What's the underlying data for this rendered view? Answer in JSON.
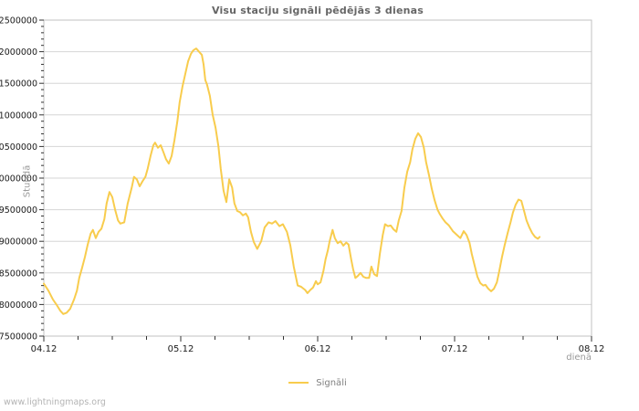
{
  "page": {
    "watermark": "www.lightningmaps.org"
  },
  "colors": {
    "background": "#ffffff",
    "series_line": "#f8cc4d",
    "gridline": "#d6d6d6",
    "frame": "#c2c2c2",
    "tick": "#333333",
    "tick_label": "#1a1a1a",
    "title": "#666666",
    "axis_title": "#999999",
    "legend_text": "#808080",
    "watermark": "#b4b4b4"
  },
  "chart_data": {
    "type": "line",
    "title": "Visu staciju signāli pēdējās 3 dienas",
    "xlabel": "dienā",
    "ylabel": "Stundā",
    "x_tick_labels": [
      "04.12",
      "05.12",
      "06.12",
      "07.12",
      "08.12"
    ],
    "x_range_hours": [
      0,
      96
    ],
    "x_major_tick_hours": 24,
    "x_minor_tick_hours": 6,
    "ylim": [
      7500000,
      12500000
    ],
    "y_tick_step": 500000,
    "y_minor_tick_step": 100000,
    "grid": "horizontal-only",
    "legend": {
      "position": "bottom-center",
      "entries": [
        {
          "label": "Signāli",
          "color": "#f8cc4d"
        }
      ]
    },
    "series": [
      {
        "name": "Signāli",
        "color": "#f8cc4d",
        "points": [
          [
            0,
            8330000
          ],
          [
            0.8,
            8220000
          ],
          [
            1.6,
            8080000
          ],
          [
            2.2,
            8000000
          ],
          [
            2.9,
            7900000
          ],
          [
            3.4,
            7850000
          ],
          [
            4,
            7870000
          ],
          [
            4.6,
            7930000
          ],
          [
            5.3,
            8080000
          ],
          [
            5.8,
            8220000
          ],
          [
            6.2,
            8420000
          ],
          [
            6.7,
            8580000
          ],
          [
            7.2,
            8750000
          ],
          [
            7.7,
            8950000
          ],
          [
            8.2,
            9120000
          ],
          [
            8.6,
            9180000
          ],
          [
            9.1,
            9050000
          ],
          [
            9.6,
            9150000
          ],
          [
            10.1,
            9200000
          ],
          [
            10.6,
            9350000
          ],
          [
            11,
            9600000
          ],
          [
            11.5,
            9780000
          ],
          [
            12,
            9700000
          ],
          [
            12.5,
            9500000
          ],
          [
            13,
            9330000
          ],
          [
            13.4,
            9280000
          ],
          [
            14.1,
            9300000
          ],
          [
            14.7,
            9600000
          ],
          [
            15.4,
            9850000
          ],
          [
            15.8,
            10020000
          ],
          [
            16.3,
            9980000
          ],
          [
            16.8,
            9870000
          ],
          [
            17.3,
            9950000
          ],
          [
            17.8,
            10020000
          ],
          [
            18.2,
            10150000
          ],
          [
            18.7,
            10350000
          ],
          [
            19.2,
            10520000
          ],
          [
            19.5,
            10560000
          ],
          [
            20,
            10480000
          ],
          [
            20.5,
            10520000
          ],
          [
            21,
            10400000
          ],
          [
            21.4,
            10300000
          ],
          [
            21.9,
            10230000
          ],
          [
            22.4,
            10350000
          ],
          [
            22.9,
            10600000
          ],
          [
            23.4,
            10900000
          ],
          [
            23.8,
            11200000
          ],
          [
            24.3,
            11450000
          ],
          [
            24.8,
            11650000
          ],
          [
            25.3,
            11850000
          ],
          [
            25.8,
            11970000
          ],
          [
            26.2,
            12020000
          ],
          [
            26.7,
            12050000
          ],
          [
            27.2,
            12000000
          ],
          [
            27.7,
            11950000
          ],
          [
            28,
            11800000
          ],
          [
            28.3,
            11550000
          ],
          [
            28.6,
            11480000
          ],
          [
            29.1,
            11300000
          ],
          [
            29.6,
            11000000
          ],
          [
            30.1,
            10800000
          ],
          [
            30.6,
            10500000
          ],
          [
            31,
            10150000
          ],
          [
            31.5,
            9800000
          ],
          [
            32,
            9620000
          ],
          [
            32.5,
            9980000
          ],
          [
            33,
            9850000
          ],
          [
            33.4,
            9600000
          ],
          [
            33.9,
            9480000
          ],
          [
            34.4,
            9460000
          ],
          [
            34.9,
            9410000
          ],
          [
            35.4,
            9440000
          ],
          [
            35.8,
            9380000
          ],
          [
            36.3,
            9150000
          ],
          [
            36.8,
            8990000
          ],
          [
            37.4,
            8880000
          ],
          [
            38.1,
            9000000
          ],
          [
            38.7,
            9220000
          ],
          [
            39.4,
            9300000
          ],
          [
            40,
            9280000
          ],
          [
            40.6,
            9320000
          ],
          [
            41.3,
            9240000
          ],
          [
            41.9,
            9270000
          ],
          [
            42.6,
            9150000
          ],
          [
            43.2,
            8940000
          ],
          [
            43.8,
            8600000
          ],
          [
            44.5,
            8300000
          ],
          [
            45.1,
            8280000
          ],
          [
            45.8,
            8230000
          ],
          [
            46.2,
            8180000
          ],
          [
            46.7,
            8230000
          ],
          [
            47.2,
            8270000
          ],
          [
            47.7,
            8370000
          ],
          [
            48,
            8320000
          ],
          [
            48.5,
            8350000
          ],
          [
            49,
            8530000
          ],
          [
            49.4,
            8720000
          ],
          [
            49.8,
            8860000
          ],
          [
            50.1,
            9000000
          ],
          [
            50.6,
            9180000
          ],
          [
            51,
            9050000
          ],
          [
            51.5,
            8970000
          ],
          [
            52,
            9000000
          ],
          [
            52.5,
            8930000
          ],
          [
            53,
            8980000
          ],
          [
            53.4,
            8950000
          ],
          [
            53.9,
            8700000
          ],
          [
            54.2,
            8560000
          ],
          [
            54.6,
            8420000
          ],
          [
            55,
            8450000
          ],
          [
            55.5,
            8500000
          ],
          [
            56,
            8440000
          ],
          [
            56.5,
            8420000
          ],
          [
            57,
            8420000
          ],
          [
            57.4,
            8600000
          ],
          [
            57.9,
            8480000
          ],
          [
            58.4,
            8450000
          ],
          [
            58.9,
            8800000
          ],
          [
            59.4,
            9100000
          ],
          [
            59.8,
            9270000
          ],
          [
            60.3,
            9240000
          ],
          [
            60.8,
            9250000
          ],
          [
            61.3,
            9190000
          ],
          [
            61.8,
            9150000
          ],
          [
            62.2,
            9330000
          ],
          [
            62.7,
            9480000
          ],
          [
            63.2,
            9850000
          ],
          [
            63.7,
            10100000
          ],
          [
            64.2,
            10250000
          ],
          [
            64.6,
            10450000
          ],
          [
            65.1,
            10620000
          ],
          [
            65.6,
            10710000
          ],
          [
            66.1,
            10650000
          ],
          [
            66.6,
            10480000
          ],
          [
            67,
            10250000
          ],
          [
            67.5,
            10050000
          ],
          [
            68,
            9830000
          ],
          [
            68.5,
            9650000
          ],
          [
            69,
            9500000
          ],
          [
            69.4,
            9430000
          ],
          [
            69.9,
            9360000
          ],
          [
            70.4,
            9300000
          ],
          [
            71,
            9250000
          ],
          [
            71.7,
            9160000
          ],
          [
            72.3,
            9110000
          ],
          [
            73,
            9050000
          ],
          [
            73.6,
            9160000
          ],
          [
            74.1,
            9100000
          ],
          [
            74.6,
            8980000
          ],
          [
            75,
            8800000
          ],
          [
            75.5,
            8620000
          ],
          [
            76,
            8440000
          ],
          [
            76.5,
            8340000
          ],
          [
            77,
            8300000
          ],
          [
            77.4,
            8310000
          ],
          [
            77.9,
            8250000
          ],
          [
            78.4,
            8210000
          ],
          [
            78.9,
            8250000
          ],
          [
            79.4,
            8350000
          ],
          [
            79.8,
            8520000
          ],
          [
            80.3,
            8750000
          ],
          [
            80.8,
            8950000
          ],
          [
            81.3,
            9130000
          ],
          [
            81.8,
            9300000
          ],
          [
            82.2,
            9450000
          ],
          [
            82.7,
            9580000
          ],
          [
            83.2,
            9660000
          ],
          [
            83.7,
            9640000
          ],
          [
            84.2,
            9470000
          ],
          [
            84.6,
            9330000
          ],
          [
            85.1,
            9220000
          ],
          [
            85.6,
            9130000
          ],
          [
            86.1,
            9070000
          ],
          [
            86.6,
            9040000
          ],
          [
            86.9,
            9070000
          ]
        ]
      }
    ]
  }
}
